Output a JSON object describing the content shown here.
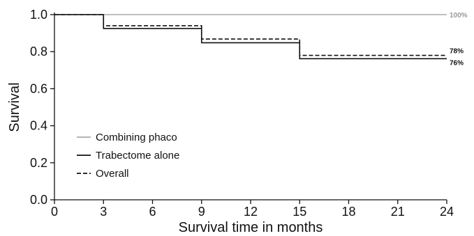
{
  "chart_data": {
    "type": "line",
    "step": true,
    "xlabel": "Survival time in months",
    "ylabel": "Survival",
    "xlim": [
      0,
      24
    ],
    "ylim": [
      0,
      1
    ],
    "xticks": [
      0,
      3,
      6,
      9,
      12,
      15,
      18,
      21,
      24
    ],
    "yticks": [
      0.0,
      0.2,
      0.4,
      0.6,
      0.8,
      1.0
    ],
    "ytick_labels": [
      "0.0",
      "0.2",
      "0.4",
      "0.6",
      "0.8",
      "1.0"
    ],
    "grid": false,
    "legend_position": "bottom-left",
    "series": [
      {
        "name": "Combining phaco",
        "color": "#aaaaaa",
        "dash": "solid",
        "x": [
          0,
          24
        ],
        "y": [
          1.0,
          1.0
        ],
        "end_label": "100%"
      },
      {
        "name": "Trabectome alone",
        "color": "#111111",
        "dash": "solid",
        "x": [
          0,
          3,
          9,
          15,
          24
        ],
        "y": [
          1.0,
          0.925,
          0.848,
          0.762,
          0.762
        ],
        "end_label": "76%"
      },
      {
        "name": "Overall",
        "color": "#111111",
        "dash": "dashed",
        "x": [
          0,
          3,
          9,
          15,
          24
        ],
        "y": [
          1.0,
          0.94,
          0.868,
          0.78,
          0.78
        ],
        "end_label": "78%"
      }
    ]
  }
}
